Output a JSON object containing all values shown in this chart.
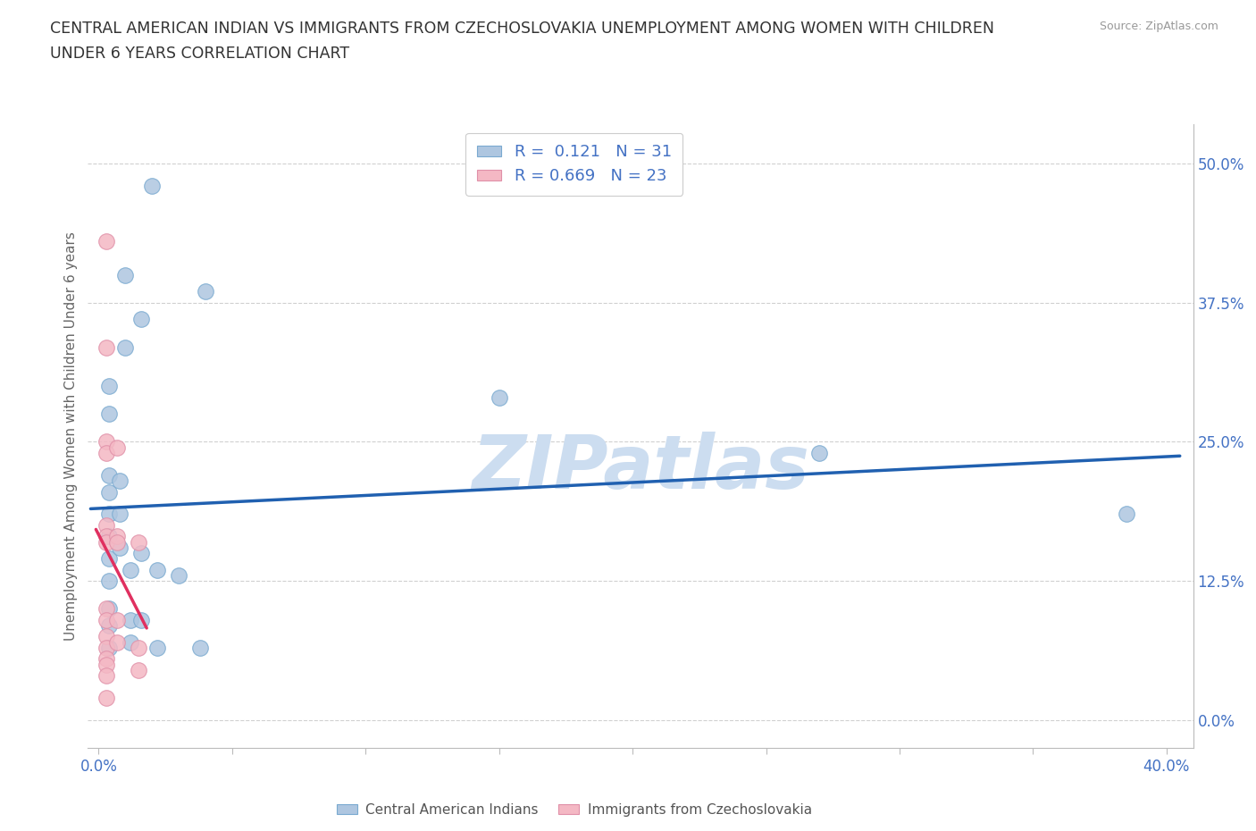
{
  "title_line1": "CENTRAL AMERICAN INDIAN VS IMMIGRANTS FROM CZECHOSLOVAKIA UNEMPLOYMENT AMONG WOMEN WITH CHILDREN",
  "title_line2": "UNDER 6 YEARS CORRELATION CHART",
  "source": "Source: ZipAtlas.com",
  "ylabel": "Unemployment Among Women with Children Under 6 years",
  "xlim": [
    -0.004,
    0.41
  ],
  "ylim": [
    -0.025,
    0.535
  ],
  "xtick_positions": [
    0.0,
    0.05,
    0.1,
    0.15,
    0.2,
    0.25,
    0.3,
    0.35,
    0.4
  ],
  "xtick_labels": [
    "0.0%",
    "",
    "",
    "",
    "",
    "",
    "",
    "",
    "40.0%"
  ],
  "ytick_positions": [
    0.0,
    0.125,
    0.25,
    0.375,
    0.5
  ],
  "ytick_labels": [
    "0.0%",
    "12.5%",
    "25.0%",
    "37.5%",
    "50.0%"
  ],
  "blue_R": "0.121",
  "blue_N": "31",
  "pink_R": "0.669",
  "pink_N": "23",
  "blue_color": "#aec6e0",
  "pink_color": "#f4b8c4",
  "blue_edge": "#7aaad0",
  "pink_edge": "#e090a8",
  "trendline_blue": "#2060b0",
  "trendline_pink": "#e03060",
  "trendline_pink_dashed": "#e0a0b0",
  "label_color": "#4472c4",
  "grid_color": "#d0d0d0",
  "watermark": "ZIPatlas",
  "watermark_color": "#ccddf0",
  "blue_x": [
    0.02,
    0.04,
    0.01,
    0.01,
    0.004,
    0.004,
    0.004,
    0.004,
    0.004,
    0.004,
    0.004,
    0.004,
    0.004,
    0.004,
    0.004,
    0.008,
    0.008,
    0.008,
    0.012,
    0.012,
    0.012,
    0.016,
    0.016,
    0.016,
    0.022,
    0.022,
    0.03,
    0.038,
    0.15,
    0.27,
    0.385
  ],
  "blue_y": [
    0.48,
    0.385,
    0.4,
    0.335,
    0.3,
    0.275,
    0.22,
    0.205,
    0.185,
    0.165,
    0.145,
    0.125,
    0.1,
    0.085,
    0.065,
    0.215,
    0.185,
    0.155,
    0.135,
    0.09,
    0.07,
    0.36,
    0.15,
    0.09,
    0.135,
    0.065,
    0.13,
    0.065,
    0.29,
    0.24,
    0.185
  ],
  "pink_x": [
    0.003,
    0.003,
    0.003,
    0.003,
    0.003,
    0.003,
    0.003,
    0.003,
    0.003,
    0.003,
    0.003,
    0.003,
    0.003,
    0.003,
    0.003,
    0.007,
    0.007,
    0.007,
    0.007,
    0.007,
    0.015,
    0.015,
    0.015
  ],
  "pink_y": [
    0.43,
    0.335,
    0.25,
    0.24,
    0.175,
    0.165,
    0.16,
    0.1,
    0.09,
    0.075,
    0.065,
    0.055,
    0.05,
    0.04,
    0.02,
    0.245,
    0.165,
    0.16,
    0.09,
    0.07,
    0.16,
    0.065,
    0.045
  ],
  "blue_trend_x0": -0.003,
  "blue_trend_x1": 0.405,
  "pink_trend_x0": -0.001,
  "pink_trend_x1": 0.018
}
